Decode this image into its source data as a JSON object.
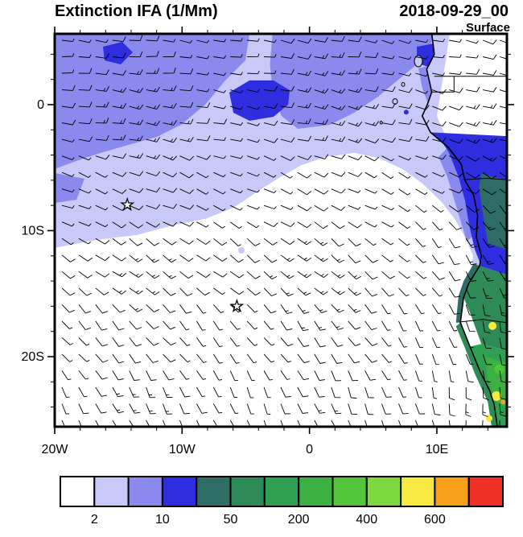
{
  "header": {
    "title": "Extinction IFA (1/Mm)",
    "datetime": "2018-09-29_00",
    "level": "Surface"
  },
  "axes": {
    "y_ticks": [
      {
        "label": "0",
        "lat": 0
      },
      {
        "label": "10S",
        "lat": -10
      },
      {
        "label": "20S",
        "lat": -20
      }
    ],
    "x_ticks": [
      {
        "label": "20W",
        "lon": -20
      },
      {
        "label": "10W",
        "lon": -10
      },
      {
        "label": "0",
        "lon": 0
      },
      {
        "label": "10E",
        "lon": 10
      }
    ]
  },
  "colorbar": {
    "colors": [
      "#ffffff",
      "#c9c9f9",
      "#8a8aee",
      "#2e2ee0",
      "#2d6d66",
      "#2e8b57",
      "#2fa052",
      "#3cb043",
      "#52c53a",
      "#7dd83f",
      "#f8e842",
      "#f9a01b",
      "#ee3124"
    ],
    "tick_labels": [
      "2",
      "10",
      "50",
      "200",
      "400",
      "600"
    ],
    "tick_boundary_indices": [
      1,
      3,
      5,
      7,
      9,
      11
    ]
  },
  "chart_data": {
    "type": "heatmap",
    "title": "Extinction IFA (1/Mm)",
    "datetime": "2018-09-29_00",
    "level": "Surface",
    "units": "1/Mm",
    "projection": "lat-lon",
    "lon_range": [
      -20,
      15.5
    ],
    "lat_range": [
      -25.56,
      5.62
    ],
    "labeled_levels": [
      2,
      10,
      50,
      200,
      400,
      600
    ],
    "overlays": [
      "filled extinction contours",
      "wind barbs",
      "coastline",
      "country borders",
      "station star markers"
    ],
    "summary": [
      "aerosol extinction 2-25 /Mm plume over the northern tropical Atlantic",
      "maximum extinction 50-600 /Mm along the Angola-Namibia coast",
      "background below 2 /Mm over the subtropical South Atlantic",
      "southeasterly trade-wind barbs of roughly 5-15 kt over the basin"
    ],
    "wind": {
      "style": "barbs",
      "grid_cols": 27,
      "grid_rows": 24,
      "speed_range_kt": [
        3,
        17
      ],
      "regime": "southeasterly trades, easterly near the equator, southerly along the coast"
    },
    "markers": [
      {
        "shape": "star",
        "lon": -14.3,
        "lat": -7.95
      },
      {
        "shape": "star",
        "lon": -5.7,
        "lat": -16.0
      }
    ],
    "coastline": [
      [
        9.6,
        5.62
      ],
      [
        9.8,
        4.0
      ],
      [
        9.2,
        2.8
      ],
      [
        9.6,
        1.0
      ],
      [
        9.25,
        0.0
      ],
      [
        8.85,
        -0.9
      ],
      [
        9.5,
        -2.2
      ],
      [
        10.9,
        -3.4
      ],
      [
        11.9,
        -4.7
      ],
      [
        12.2,
        -6.0
      ],
      [
        12.9,
        -7.2
      ],
      [
        13.2,
        -8.8
      ],
      [
        13.1,
        -10.5
      ],
      [
        13.5,
        -12.0
      ],
      [
        13.35,
        -12.8
      ],
      [
        12.5,
        -14.2
      ],
      [
        12.1,
        -15.3
      ],
      [
        11.85,
        -17.3
      ],
      [
        12.6,
        -19.2
      ],
      [
        13.4,
        -21.2
      ],
      [
        14.15,
        -22.7
      ],
      [
        14.5,
        -23.8
      ],
      [
        14.75,
        -25.56
      ]
    ],
    "filled_regions": [
      {
        "color_index": 1,
        "polygon": [
          [
            -20,
            5.62
          ],
          [
            15.5,
            5.62
          ],
          [
            15.5,
            -15.5
          ],
          [
            12.22,
            -15.34
          ],
          [
            12.66,
            -13.74
          ],
          [
            12.85,
            -12.01
          ],
          [
            12.22,
            -10.54
          ],
          [
            11.4,
            -9.07
          ],
          [
            10.32,
            -7.67
          ],
          [
            8.87,
            -6.26
          ],
          [
            7.29,
            -5.11
          ],
          [
            5.4,
            -4.22
          ],
          [
            3.5,
            -3.83
          ],
          [
            1.29,
            -4.15
          ],
          [
            -0.6,
            -4.79
          ],
          [
            -2.5,
            -5.88
          ],
          [
            -4.08,
            -6.9
          ],
          [
            -5.97,
            -8.18
          ],
          [
            -8.19,
            -9.07
          ],
          [
            -10.71,
            -9.58
          ],
          [
            -13.56,
            -10.35
          ],
          [
            -16.71,
            -10.73
          ],
          [
            -20,
            -11.37
          ]
        ]
      },
      {
        "color_index": 2,
        "polygon": [
          [
            -20,
            5.62
          ],
          [
            -4.71,
            5.62
          ],
          [
            -5.03,
            3.51
          ],
          [
            -6.61,
            1.92
          ],
          [
            -8.19,
            0
          ],
          [
            -10.08,
            -1.6
          ],
          [
            -11.98,
            -2.56
          ],
          [
            -14.19,
            -3.19
          ],
          [
            -16.4,
            -3.83
          ],
          [
            -18.3,
            -4.47
          ],
          [
            -20,
            -5.11
          ]
        ]
      },
      {
        "color_index": 2,
        "polygon": [
          [
            -2.9,
            5.62
          ],
          [
            9.82,
            5.62
          ],
          [
            9.19,
            3.83
          ],
          [
            7.29,
            2.24
          ],
          [
            5.4,
            0.64
          ],
          [
            3.5,
            -0.64
          ],
          [
            1.61,
            -1.6
          ],
          [
            -0.92,
            -1.92
          ],
          [
            -2.2,
            -0.9
          ],
          [
            -2.9,
            0.96
          ],
          [
            -3.1,
            3.19
          ]
        ]
      },
      {
        "color_index": 2,
        "polygon": [
          [
            9.82,
            3.19
          ],
          [
            11.08,
            0.64
          ],
          [
            12.03,
            -1.92
          ],
          [
            11.08,
            -2.88
          ],
          [
            9.82,
            -1.28
          ],
          [
            8.87,
            1.28
          ],
          [
            8.55,
            2.88
          ]
        ]
      },
      {
        "color_index": 2,
        "polygon": [
          [
            -20,
            -5.43
          ],
          [
            -17.66,
            -5.88
          ],
          [
            -18.29,
            -7.54
          ],
          [
            -20,
            -7.8
          ]
        ]
      },
      {
        "color_index": 2,
        "polygon": [
          [
            10.76,
            -3.51
          ],
          [
            12.03,
            -5.43
          ],
          [
            12.66,
            -7.67
          ],
          [
            13.1,
            -10.22
          ],
          [
            12.35,
            -10.86
          ],
          [
            11.59,
            -8.31
          ],
          [
            10.83,
            -5.75
          ],
          [
            10.13,
            -4.15
          ]
        ]
      },
      {
        "color_index": 3,
        "polygon": [
          [
            -6.29,
            0.96
          ],
          [
            -4.71,
            1.92
          ],
          [
            -2.82,
            1.92
          ],
          [
            -1.55,
            1.15
          ],
          [
            -1.68,
            0
          ],
          [
            -2.82,
            -0.96
          ],
          [
            -4.71,
            -1.28
          ],
          [
            -5.97,
            -0.64
          ]
        ]
      },
      {
        "color_index": 3,
        "polygon": [
          [
            -16.21,
            4.6
          ],
          [
            -14.7,
            4.98
          ],
          [
            -13.87,
            4.15
          ],
          [
            -14.82,
            3.19
          ],
          [
            -16.09,
            3.51
          ]
        ]
      },
      {
        "color_index": 3,
        "polygon": [
          [
            8.43,
            4.6
          ],
          [
            9.82,
            4.86
          ],
          [
            10.32,
            3.83
          ],
          [
            9.44,
            2.94
          ],
          [
            8.43,
            3.32
          ]
        ]
      },
      {
        "color_index": 3,
        "polygon": [
          [
            10.13,
            -1.28
          ],
          [
            11.4,
            -2.88
          ],
          [
            12.35,
            -4.79
          ],
          [
            12.98,
            -6.71
          ],
          [
            13.48,
            -8.82
          ],
          [
            13.73,
            -10.54
          ],
          [
            14.11,
            -12.01
          ],
          [
            13.6,
            -13.1
          ],
          [
            12.98,
            -11.5
          ],
          [
            12.54,
            -9.58
          ],
          [
            12.22,
            -7.67
          ],
          [
            11.71,
            -5.75
          ],
          [
            10.96,
            -3.83
          ],
          [
            9.95,
            -2.24
          ]
        ]
      }
    ],
    "land_patches": [
      {
        "color_index": 1,
        "polygon": [
          [
            9.6,
            5.62
          ],
          [
            11.0,
            5.62
          ],
          [
            10.7,
            3.5
          ],
          [
            10.3,
            1.0
          ],
          [
            10.0,
            -0.9
          ],
          [
            10.6,
            -2.3
          ],
          [
            11.3,
            -3.0
          ],
          [
            9.5,
            -2.2
          ],
          [
            8.85,
            -0.9
          ],
          [
            9.25,
            0
          ],
          [
            9.6,
            1.0
          ],
          [
            9.2,
            2.8
          ],
          [
            9.8,
            4.0
          ]
        ]
      },
      {
        "color_index": 3,
        "polygon": [
          [
            9.5,
            -2.2
          ],
          [
            10.9,
            -3.4
          ],
          [
            11.9,
            -4.7
          ],
          [
            12.2,
            -6.0
          ],
          [
            12.9,
            -7.2
          ],
          [
            13.2,
            -8.8
          ],
          [
            13.1,
            -10.5
          ],
          [
            13.5,
            -12.0
          ],
          [
            13.35,
            -12.8
          ],
          [
            15.5,
            -13.5
          ],
          [
            15.5,
            -2.5
          ]
        ]
      },
      {
        "color_index": 4,
        "polygon": [
          [
            13.5,
            -5.5
          ],
          [
            15.5,
            -6.0
          ],
          [
            15.5,
            -11.5
          ],
          [
            14.0,
            -11.0
          ],
          [
            13.6,
            -8.5
          ],
          [
            13.3,
            -6.5
          ]
        ]
      },
      {
        "color_index": 5,
        "polygon": [
          [
            13.35,
            -12.8
          ],
          [
            15.5,
            -13.5
          ],
          [
            15.5,
            -19.5
          ],
          [
            13.5,
            -19.0
          ],
          [
            12.6,
            -16.5
          ],
          [
            12.1,
            -15.3
          ],
          [
            12.5,
            -14.2
          ]
        ]
      },
      {
        "color_index": 6,
        "polygon": [
          [
            12.6,
            -19.2
          ],
          [
            13.5,
            -19.0
          ],
          [
            15.5,
            -19.5
          ],
          [
            15.5,
            -25.56
          ],
          [
            14.75,
            -25.56
          ],
          [
            14.5,
            -23.8
          ],
          [
            14.15,
            -22.7
          ],
          [
            13.4,
            -21.2
          ]
        ]
      },
      {
        "color_index": 7,
        "polygon": [
          [
            13.8,
            -20.0
          ],
          [
            15.5,
            -20.5
          ],
          [
            15.5,
            -24.0
          ],
          [
            14.6,
            -23.5
          ],
          [
            14.0,
            -21.8
          ]
        ]
      },
      {
        "color_index": 4,
        "polygon": [
          [
            13.35,
            -12.8
          ],
          [
            12.5,
            -14.2
          ],
          [
            12.1,
            -15.3
          ],
          [
            11.85,
            -17.3
          ],
          [
            11.5,
            -17.3
          ],
          [
            11.7,
            -15.2
          ],
          [
            12.1,
            -14.0
          ],
          [
            12.9,
            -12.6
          ]
        ]
      },
      {
        "color_index": 5,
        "polygon": [
          [
            11.85,
            -17.3
          ],
          [
            12.6,
            -19.2
          ],
          [
            13.4,
            -21.2
          ],
          [
            14.15,
            -22.7
          ],
          [
            14.5,
            -23.8
          ],
          [
            14.75,
            -25.56
          ],
          [
            14.3,
            -25.56
          ],
          [
            14.0,
            -23.6
          ],
          [
            13.0,
            -21.4
          ],
          [
            12.2,
            -19.3
          ],
          [
            11.5,
            -17.6
          ]
        ]
      }
    ],
    "spots": [
      {
        "color_index": 1,
        "lon": -5.34,
        "lat": -11.56,
        "r": 4
      },
      {
        "color_index": 3,
        "lon": 7.6,
        "lat": -0.6,
        "r": 3
      },
      {
        "color_index": 8,
        "lon": 14.9,
        "lat": -21.0,
        "r": 6
      },
      {
        "color_index": 10,
        "lon": 14.37,
        "lat": -17.57,
        "r": 5
      },
      {
        "color_index": 10,
        "lon": 14.68,
        "lat": -23.13,
        "r": 6
      },
      {
        "color_index": 10,
        "lon": 14.11,
        "lat": -24.9,
        "r": 4
      },
      {
        "color_index": 11,
        "lon": 15.2,
        "lat": -23.6,
        "r": 3
      }
    ],
    "borders": [
      [
        [
          9.8,
          2.25
        ],
        [
          15.5,
          2.25
        ]
      ],
      [
        [
          9.6,
          1.0
        ],
        [
          11.35,
          1.0
        ],
        [
          11.35,
          2.25
        ]
      ],
      [
        [
          12.2,
          -5.95
        ],
        [
          13.8,
          -5.85
        ],
        [
          15.5,
          -5.95
        ]
      ],
      [
        [
          11.85,
          -17.25
        ],
        [
          13.6,
          -17.05
        ],
        [
          15.5,
          -17.3
        ]
      ]
    ],
    "islands": [
      {
        "lon": 8.55,
        "lat": 3.45,
        "rx": 5,
        "ry": 7
      },
      {
        "lon": 7.35,
        "lat": 1.6,
        "rx": 2,
        "ry": 2.4
      },
      {
        "lon": 6.72,
        "lat": 0.25,
        "rx": 3,
        "ry": 3.4
      },
      {
        "lon": 5.63,
        "lat": -1.43,
        "rx": 1.5,
        "ry": 1.8
      }
    ]
  }
}
